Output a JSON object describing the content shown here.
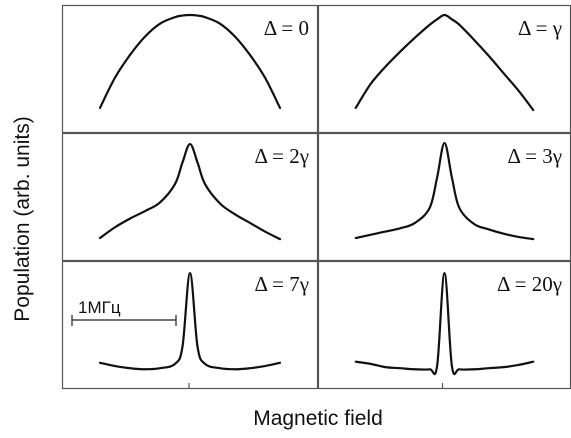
{
  "chart_data": {
    "type": "line",
    "layout": "3x2 grid of panels",
    "xlabel": "Magnetic field",
    "ylabel": "Population (arb. units)",
    "x": [
      -3,
      -2.5,
      -2,
      -1.5,
      -1,
      -0.5,
      -0.25,
      0,
      0.25,
      0.5,
      1,
      1.5,
      2,
      2.5,
      3
    ],
    "xlim": [
      -3.6,
      3.6
    ],
    "ylim": [
      0,
      1
    ],
    "scale_bar_label": "1МГц",
    "panels": [
      {
        "label": "Δ = 0",
        "values": [
          0.14,
          0.42,
          0.63,
          0.8,
          0.92,
          0.98,
          0.995,
          1.0,
          0.995,
          0.98,
          0.92,
          0.8,
          0.63,
          0.42,
          0.14
        ]
      },
      {
        "label": "Δ = γ",
        "values": [
          0.14,
          0.36,
          0.52,
          0.66,
          0.79,
          0.91,
          0.96,
          1.0,
          0.96,
          0.91,
          0.77,
          0.62,
          0.46,
          0.3,
          0.12
        ]
      },
      {
        "label": "Δ = 2γ",
        "values": [
          0.12,
          0.22,
          0.3,
          0.37,
          0.45,
          0.62,
          0.82,
          0.99,
          0.82,
          0.62,
          0.44,
          0.34,
          0.26,
          0.18,
          0.11
        ]
      },
      {
        "label": "Δ = 3γ",
        "values": [
          0.12,
          0.15,
          0.18,
          0.21,
          0.26,
          0.4,
          0.68,
          1.0,
          0.68,
          0.4,
          0.25,
          0.2,
          0.16,
          0.13,
          0.11
        ]
      },
      {
        "label": "Δ = 7γ",
        "values": [
          0.15,
          0.12,
          0.1,
          0.09,
          0.1,
          0.14,
          0.3,
          0.98,
          0.3,
          0.14,
          0.1,
          0.09,
          0.1,
          0.12,
          0.15
        ]
      },
      {
        "label": "Δ = 20γ",
        "values": [
          0.16,
          0.14,
          0.11,
          0.1,
          0.09,
          0.09,
          0.12,
          0.98,
          0.12,
          0.09,
          0.09,
          0.1,
          0.11,
          0.13,
          0.16
        ]
      }
    ]
  }
}
